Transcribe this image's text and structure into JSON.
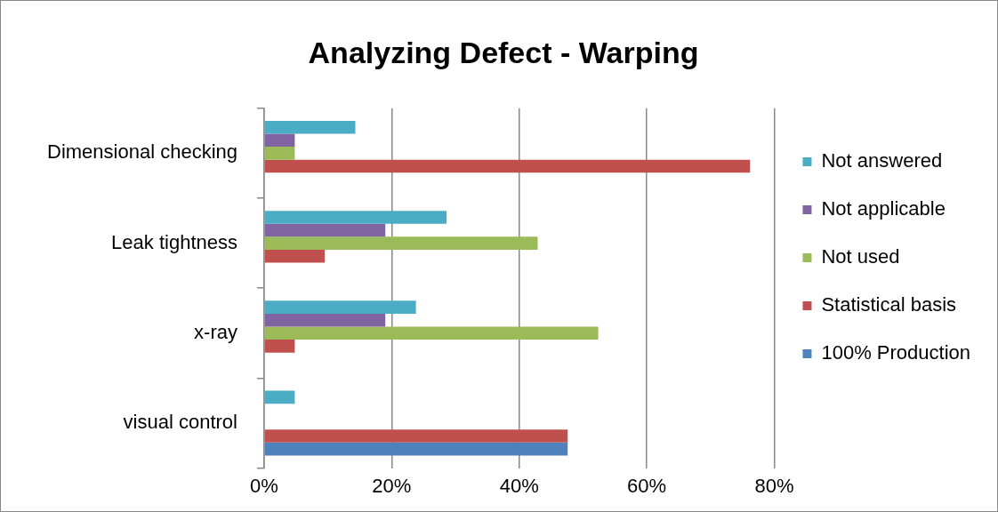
{
  "chart_data": {
    "type": "bar",
    "title": "Analyzing Defect - Warping",
    "orientation": "horizontal",
    "categories": [
      "Dimensional checking",
      "Leak tightness",
      "x-ray",
      "visual control"
    ],
    "series": [
      {
        "name": "Not answered",
        "color": "#4bacc6",
        "values": [
          14.3,
          28.6,
          23.8,
          4.8
        ]
      },
      {
        "name": "Not applicable",
        "color": "#8064a2",
        "values": [
          4.8,
          19.0,
          19.0,
          0
        ]
      },
      {
        "name": "Not used",
        "color": "#9bbb59",
        "values": [
          4.8,
          42.9,
          52.4,
          0
        ]
      },
      {
        "name": "Statistical basis",
        "color": "#c0504d",
        "values": [
          76.2,
          9.5,
          4.8,
          47.6
        ]
      },
      {
        "name": "100% Production",
        "color": "#4f81bd",
        "values": [
          0,
          0,
          0,
          47.6
        ]
      }
    ],
    "xlim": [
      0,
      80
    ],
    "xticks": [
      {
        "value": 0,
        "label": "0%"
      },
      {
        "value": 20,
        "label": "20%"
      },
      {
        "value": 40,
        "label": "40%"
      },
      {
        "value": 60,
        "label": "60%"
      },
      {
        "value": 80,
        "label": "80%"
      }
    ],
    "grid": "x",
    "legend": "right"
  }
}
